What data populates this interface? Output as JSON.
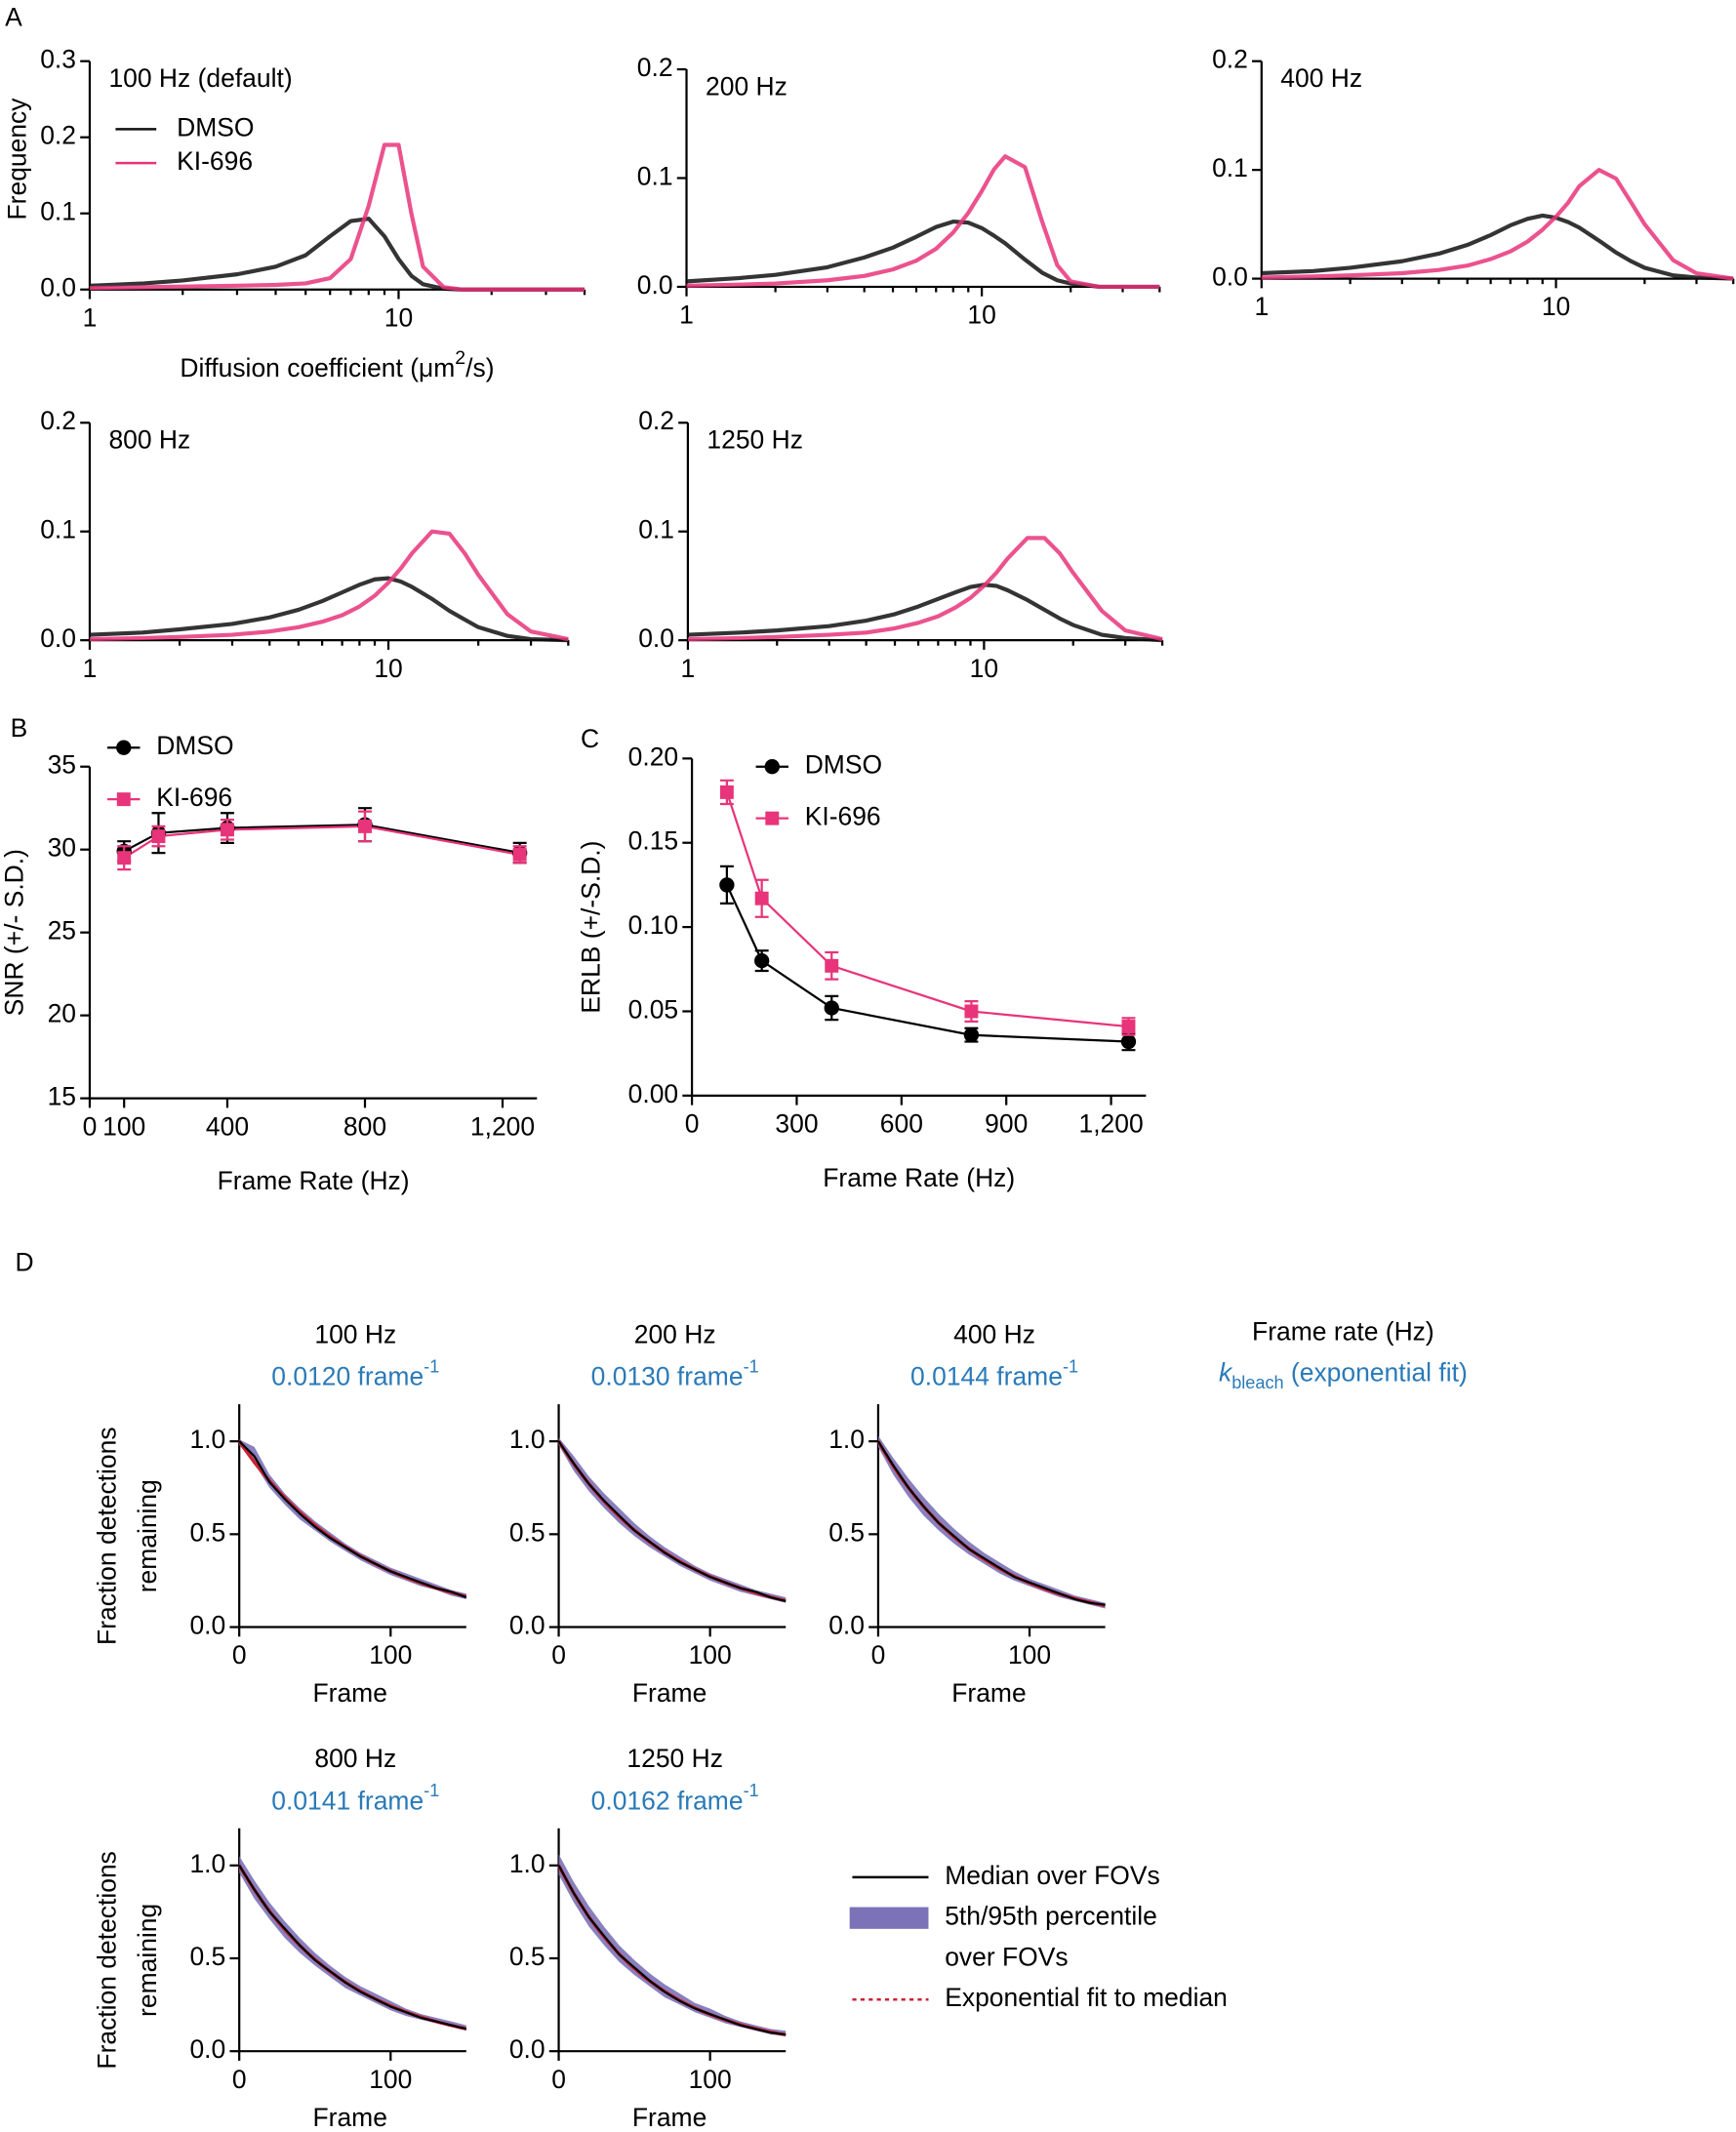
{
  "chart_data": [
    {
      "type": "line",
      "panel": "A",
      "title": "100 Hz (default)",
      "xscale": "log",
      "xlim": [
        1,
        40
      ],
      "ylim": [
        0,
        0.3
      ],
      "xticks": [
        1,
        10
      ],
      "xminor": [
        2,
        3,
        4,
        5,
        6,
        7,
        8,
        9,
        20,
        30,
        40
      ],
      "yticks": [
        {
          "value": 0,
          "label": "0.0"
        },
        0.1,
        0.2,
        0.3
      ],
      "ylabel": "Frequency",
      "xlabel": {
        "text": "Diffusion coefficient (μm",
        "sup": "2",
        "after": "/s)"
      },
      "legend": true,
      "x": [
        1,
        1.5,
        2,
        3,
        4,
        5,
        6,
        7,
        8,
        9,
        10,
        11,
        12,
        14,
        16,
        18,
        20,
        25,
        30,
        40
      ],
      "series": [
        {
          "name": "DMSO",
          "color": "#111111",
          "values": [
            0.005,
            0.008,
            0.012,
            0.02,
            0.03,
            0.045,
            0.07,
            0.09,
            0.093,
            0.07,
            0.04,
            0.018,
            0.007,
            0.001,
            0,
            0,
            0,
            0,
            0,
            0
          ]
        },
        {
          "name": "KI-696",
          "color": "#e8347a",
          "values": [
            0.002,
            0.003,
            0.004,
            0.005,
            0.006,
            0.008,
            0.015,
            0.04,
            0.11,
            0.19,
            0.19,
            0.1,
            0.03,
            0.003,
            0,
            0,
            0,
            0,
            0,
            0
          ]
        }
      ]
    },
    {
      "type": "line",
      "title": "200 Hz",
      "xscale": "log",
      "xlim": [
        1,
        40
      ],
      "ylim": [
        0,
        0.2
      ],
      "xticks": [
        1,
        10
      ],
      "xminor": [
        2,
        3,
        4,
        5,
        6,
        7,
        8,
        9,
        20,
        30,
        40
      ],
      "yticks": [
        {
          "value": 0,
          "label": "0.0"
        },
        0.1,
        0.2
      ],
      "x": [
        1,
        1.5,
        2,
        3,
        4,
        5,
        6,
        7,
        8,
        9,
        10,
        11,
        12,
        14,
        16,
        18,
        20,
        25,
        30,
        40
      ],
      "series": [
        {
          "color": "#111111",
          "values": [
            0.005,
            0.008,
            0.011,
            0.018,
            0.027,
            0.036,
            0.046,
            0.055,
            0.06,
            0.059,
            0.054,
            0.047,
            0.04,
            0.025,
            0.013,
            0.006,
            0.003,
            0,
            0,
            0
          ]
        },
        {
          "color": "#e8347a",
          "values": [
            0.001,
            0.002,
            0.003,
            0.006,
            0.01,
            0.016,
            0.024,
            0.035,
            0.05,
            0.068,
            0.088,
            0.108,
            0.12,
            0.11,
            0.06,
            0.02,
            0.005,
            0,
            0,
            0
          ]
        }
      ]
    },
    {
      "type": "line",
      "title": "400 Hz",
      "xscale": "log",
      "xlim": [
        1,
        40
      ],
      "ylim": [
        0,
        0.2
      ],
      "xticks": [
        1,
        10
      ],
      "xminor": [
        2,
        3,
        4,
        5,
        6,
        7,
        8,
        9,
        20,
        30,
        40
      ],
      "yticks": [
        {
          "value": 0,
          "label": "0.0"
        },
        0.1,
        0.2
      ],
      "x": [
        1,
        1.5,
        2,
        3,
        4,
        5,
        6,
        7,
        8,
        9,
        10,
        11,
        12,
        14,
        16,
        18,
        20,
        25,
        30,
        40
      ],
      "series": [
        {
          "color": "#111111",
          "values": [
            0.005,
            0.007,
            0.01,
            0.016,
            0.023,
            0.031,
            0.04,
            0.049,
            0.055,
            0.058,
            0.056,
            0.052,
            0.047,
            0.035,
            0.024,
            0.016,
            0.01,
            0.003,
            0.001,
            0
          ]
        },
        {
          "color": "#e8347a",
          "values": [
            0.001,
            0.002,
            0.003,
            0.005,
            0.008,
            0.012,
            0.018,
            0.025,
            0.034,
            0.045,
            0.057,
            0.07,
            0.085,
            0.1,
            0.092,
            0.07,
            0.05,
            0.017,
            0.005,
            0
          ]
        }
      ]
    },
    {
      "type": "line",
      "title": "800 Hz",
      "xscale": "log",
      "xlim": [
        1,
        40
      ],
      "ylim": [
        0,
        0.2
      ],
      "xticks": [
        1,
        10
      ],
      "xminor": [
        2,
        3,
        4,
        5,
        6,
        7,
        8,
        9,
        20,
        30,
        40
      ],
      "yticks": [
        {
          "value": 0,
          "label": "0.0"
        },
        0.1,
        0.2
      ],
      "x": [
        1,
        1.5,
        2,
        3,
        4,
        5,
        6,
        7,
        8,
        9,
        10,
        11,
        12,
        14,
        16,
        18,
        20,
        25,
        30,
        40
      ],
      "series": [
        {
          "color": "#111111",
          "values": [
            0.005,
            0.007,
            0.01,
            0.015,
            0.021,
            0.028,
            0.036,
            0.044,
            0.051,
            0.056,
            0.057,
            0.054,
            0.049,
            0.038,
            0.027,
            0.019,
            0.012,
            0.004,
            0.001,
            0
          ]
        },
        {
          "color": "#e8347a",
          "values": [
            0.001,
            0.002,
            0.003,
            0.005,
            0.008,
            0.012,
            0.017,
            0.023,
            0.031,
            0.041,
            0.053,
            0.066,
            0.08,
            0.1,
            0.098,
            0.08,
            0.06,
            0.024,
            0.008,
            0.001
          ]
        }
      ]
    },
    {
      "type": "line",
      "title": "1250 Hz",
      "xscale": "log",
      "xlim": [
        1,
        40
      ],
      "ylim": [
        0,
        0.2
      ],
      "xticks": [
        1,
        10
      ],
      "xminor": [
        2,
        3,
        4,
        5,
        6,
        7,
        8,
        9,
        20,
        30,
        40
      ],
      "yticks": [
        {
          "value": 0,
          "label": "0.0"
        },
        0.1,
        0.2
      ],
      "x": [
        1,
        1.5,
        2,
        3,
        4,
        5,
        6,
        7,
        8,
        9,
        10,
        11,
        12,
        14,
        16,
        18,
        20,
        25,
        30,
        40
      ],
      "series": [
        {
          "color": "#111111",
          "values": [
            0.005,
            0.007,
            0.009,
            0.013,
            0.018,
            0.024,
            0.031,
            0.038,
            0.044,
            0.049,
            0.051,
            0.05,
            0.046,
            0.037,
            0.028,
            0.02,
            0.014,
            0.005,
            0.002,
            0
          ]
        },
        {
          "color": "#e8347a",
          "values": [
            0.001,
            0.002,
            0.003,
            0.005,
            0.007,
            0.011,
            0.016,
            0.022,
            0.03,
            0.039,
            0.05,
            0.062,
            0.075,
            0.094,
            0.094,
            0.08,
            0.062,
            0.027,
            0.009,
            0.001
          ]
        }
      ]
    },
    {
      "type": "errorbar",
      "panel": "B",
      "xlim": [
        0,
        1300
      ],
      "ylim": [
        15,
        35
      ],
      "xticks": [
        0,
        100,
        400,
        800,
        {
          "value": 1200,
          "label": "1,200"
        }
      ],
      "yticks": [
        15,
        20,
        25,
        30,
        35
      ],
      "ylabel": "SNR (+/- S.D.)",
      "xlabel": "Frame Rate (Hz)",
      "x": [
        100,
        200,
        400,
        800,
        1250
      ],
      "series": [
        {
          "name": "DMSO",
          "color": "#000000",
          "marker": "circle",
          "values": [
            29.9,
            31.0,
            31.3,
            31.5,
            29.8
          ],
          "errors": [
            0.6,
            1.2,
            0.9,
            1.0,
            0.6
          ]
        },
        {
          "name": "KI-696",
          "color": "#e8347a",
          "marker": "square",
          "values": [
            29.5,
            30.8,
            31.2,
            31.4,
            29.7
          ],
          "errors": [
            0.7,
            0.6,
            0.6,
            0.9,
            0.5
          ]
        }
      ]
    },
    {
      "type": "errorbar",
      "panel": "C",
      "xlim": [
        0,
        1300
      ],
      "ylim": [
        0,
        0.2
      ],
      "xticks": [
        0,
        300,
        600,
        900,
        {
          "value": 1200,
          "label": "1,200"
        }
      ],
      "yticks": [
        {
          "value": 0,
          "label": "0.00"
        },
        0.05,
        {
          "value": 0.1,
          "label": "0.10"
        },
        0.15,
        {
          "value": 0.2,
          "label": "0.20"
        }
      ],
      "ylabel": "ERLB (+/-S.D.)",
      "xlabel": "Frame Rate (Hz)",
      "x": [
        100,
        200,
        400,
        800,
        1250
      ],
      "series": [
        {
          "name": "DMSO",
          "color": "#000000",
          "marker": "circle",
          "values": [
            0.125,
            0.08,
            0.052,
            0.036,
            0.032
          ],
          "errors": [
            0.011,
            0.006,
            0.007,
            0.004,
            0.005
          ]
        },
        {
          "name": "KI-696",
          "color": "#e8347a",
          "marker": "square",
          "values": [
            0.18,
            0.117,
            0.077,
            0.05,
            0.041
          ],
          "errors": [
            0.007,
            0.011,
            0.008,
            0.006,
            0.005
          ]
        }
      ]
    },
    {
      "type": "decay",
      "title": "100 Hz",
      "rate": {
        "value": 0.012,
        "label": "0.0120 frame"
      },
      "rate_sup": "-1",
      "xlim": [
        0,
        150
      ],
      "ylim": [
        0,
        1.2
      ],
      "xticks": [
        0,
        100
      ],
      "yticks": [
        {
          "value": 0,
          "label": "0.0"
        },
        0.5,
        {
          "value": 1,
          "label": "1.0"
        }
      ],
      "xlabel": "Frame",
      "ylabel": [
        "Fraction detections",
        "remaining"
      ],
      "x": [
        0,
        10,
        20,
        30,
        40,
        50,
        60,
        70,
        80,
        90,
        100,
        110,
        120,
        130,
        140,
        150
      ],
      "median": [
        1.0,
        0.92,
        0.78,
        0.69,
        0.61,
        0.54,
        0.48,
        0.43,
        0.38,
        0.34,
        0.3,
        0.27,
        0.24,
        0.21,
        0.19,
        0.16
      ],
      "p5": [
        0.98,
        0.88,
        0.75,
        0.66,
        0.58,
        0.52,
        0.46,
        0.41,
        0.36,
        0.32,
        0.28,
        0.25,
        0.22,
        0.2,
        0.17,
        0.15
      ],
      "p95": [
        1.01,
        0.97,
        0.82,
        0.72,
        0.64,
        0.57,
        0.51,
        0.45,
        0.4,
        0.36,
        0.32,
        0.29,
        0.26,
        0.23,
        0.2,
        0.18
      ]
    },
    {
      "type": "decay",
      "title": "200 Hz",
      "rate": {
        "value": 0.013,
        "label": "0.0130 frame"
      },
      "rate_sup": "-1",
      "xlim": [
        0,
        150
      ],
      "ylim": [
        0,
        1.2
      ],
      "xticks": [
        0,
        100
      ],
      "yticks": [
        {
          "value": 0,
          "label": "0.0"
        },
        0.5,
        {
          "value": 1,
          "label": "1.0"
        }
      ],
      "xlabel": "Frame",
      "x": [
        0,
        10,
        20,
        30,
        40,
        50,
        60,
        70,
        80,
        90,
        100,
        110,
        120,
        130,
        140,
        150
      ],
      "median": [
        1.0,
        0.88,
        0.77,
        0.68,
        0.6,
        0.52,
        0.46,
        0.4,
        0.35,
        0.31,
        0.27,
        0.24,
        0.21,
        0.19,
        0.16,
        0.14
      ],
      "p5": [
        0.98,
        0.84,
        0.73,
        0.64,
        0.56,
        0.49,
        0.43,
        0.38,
        0.33,
        0.29,
        0.25,
        0.22,
        0.19,
        0.17,
        0.15,
        0.13
      ],
      "p95": [
        1.02,
        0.92,
        0.81,
        0.72,
        0.64,
        0.56,
        0.49,
        0.43,
        0.38,
        0.33,
        0.29,
        0.26,
        0.23,
        0.2,
        0.18,
        0.16
      ]
    },
    {
      "type": "decay",
      "title": "400 Hz",
      "rate": {
        "value": 0.0144,
        "label": "0.0144 frame"
      },
      "rate_sup": "-1",
      "xlim": [
        0,
        150
      ],
      "ylim": [
        0,
        1.2
      ],
      "xticks": [
        0,
        100
      ],
      "yticks": [
        {
          "value": 0,
          "label": "0.0"
        },
        0.5,
        {
          "value": 1,
          "label": "1.0"
        }
      ],
      "xlabel": "Frame",
      "x": [
        0,
        10,
        20,
        30,
        40,
        50,
        60,
        70,
        80,
        90,
        100,
        110,
        120,
        130,
        140,
        150
      ],
      "median": [
        1.0,
        0.87,
        0.75,
        0.65,
        0.56,
        0.49,
        0.42,
        0.37,
        0.32,
        0.27,
        0.24,
        0.21,
        0.18,
        0.15,
        0.13,
        0.12
      ],
      "p5": [
        0.97,
        0.82,
        0.7,
        0.6,
        0.52,
        0.45,
        0.39,
        0.34,
        0.29,
        0.25,
        0.22,
        0.19,
        0.16,
        0.14,
        0.12,
        0.1
      ],
      "p95": [
        1.03,
        0.91,
        0.8,
        0.7,
        0.61,
        0.53,
        0.46,
        0.4,
        0.35,
        0.3,
        0.26,
        0.23,
        0.2,
        0.17,
        0.15,
        0.13
      ]
    },
    {
      "type": "decay",
      "title": "800 Hz",
      "rate": {
        "value": 0.0141,
        "label": "0.0141 frame"
      },
      "rate_sup": "-1",
      "xlim": [
        0,
        150
      ],
      "ylim": [
        0,
        1.2
      ],
      "xticks": [
        0,
        100
      ],
      "yticks": [
        {
          "value": 0,
          "label": "0.0"
        },
        0.5,
        {
          "value": 1,
          "label": "1.0"
        }
      ],
      "xlabel": "Frame",
      "ylabel": [
        "Fraction detections",
        "remaining"
      ],
      "x": [
        0,
        10,
        20,
        30,
        40,
        50,
        60,
        70,
        80,
        90,
        100,
        110,
        120,
        130,
        140,
        150
      ],
      "median": [
        1.0,
        0.87,
        0.75,
        0.66,
        0.57,
        0.49,
        0.43,
        0.37,
        0.32,
        0.28,
        0.24,
        0.21,
        0.18,
        0.16,
        0.14,
        0.12
      ],
      "p5": [
        0.96,
        0.82,
        0.71,
        0.61,
        0.53,
        0.46,
        0.4,
        0.34,
        0.3,
        0.26,
        0.22,
        0.19,
        0.17,
        0.15,
        0.13,
        0.11
      ],
      "p95": [
        1.05,
        0.92,
        0.8,
        0.7,
        0.61,
        0.53,
        0.46,
        0.4,
        0.35,
        0.31,
        0.27,
        0.23,
        0.2,
        0.18,
        0.16,
        0.14
      ]
    },
    {
      "type": "decay",
      "title": "1250 Hz",
      "rate": {
        "value": 0.0162,
        "label": "0.0162 frame"
      },
      "rate_sup": "-1",
      "xlim": [
        0,
        150
      ],
      "ylim": [
        0,
        1.2
      ],
      "xticks": [
        0,
        100
      ],
      "yticks": [
        {
          "value": 0,
          "label": "0.0"
        },
        0.5,
        {
          "value": 1,
          "label": "1.0"
        }
      ],
      "xlabel": "Frame",
      "x": [
        0,
        10,
        20,
        30,
        40,
        50,
        60,
        70,
        80,
        90,
        100,
        110,
        120,
        130,
        140,
        150
      ],
      "median": [
        1.0,
        0.85,
        0.72,
        0.62,
        0.52,
        0.45,
        0.38,
        0.32,
        0.27,
        0.23,
        0.2,
        0.17,
        0.14,
        0.12,
        0.1,
        0.09
      ],
      "p5": [
        0.95,
        0.8,
        0.67,
        0.57,
        0.48,
        0.41,
        0.35,
        0.29,
        0.25,
        0.21,
        0.18,
        0.15,
        0.13,
        0.11,
        0.09,
        0.08
      ],
      "p95": [
        1.06,
        0.91,
        0.78,
        0.67,
        0.57,
        0.49,
        0.42,
        0.36,
        0.31,
        0.26,
        0.23,
        0.19,
        0.16,
        0.14,
        0.12,
        0.11
      ]
    }
  ],
  "figure_d": {
    "panel": "D",
    "header": {
      "title": "Frame rate (Hz)",
      "symbol": "k",
      "subscript": "bleach",
      "text": " (exponential fit)"
    },
    "legend": {
      "median": {
        "name": "Median over FOVs",
        "color": "#000000"
      },
      "band": {
        "name": [
          "5th/95th percentile",
          "over FOVs"
        ],
        "color": "#7b72b8"
      },
      "fit": {
        "name": "Exponential fit to median",
        "color": "#cc2233"
      }
    },
    "rate_color": "#2a7ab8"
  }
}
